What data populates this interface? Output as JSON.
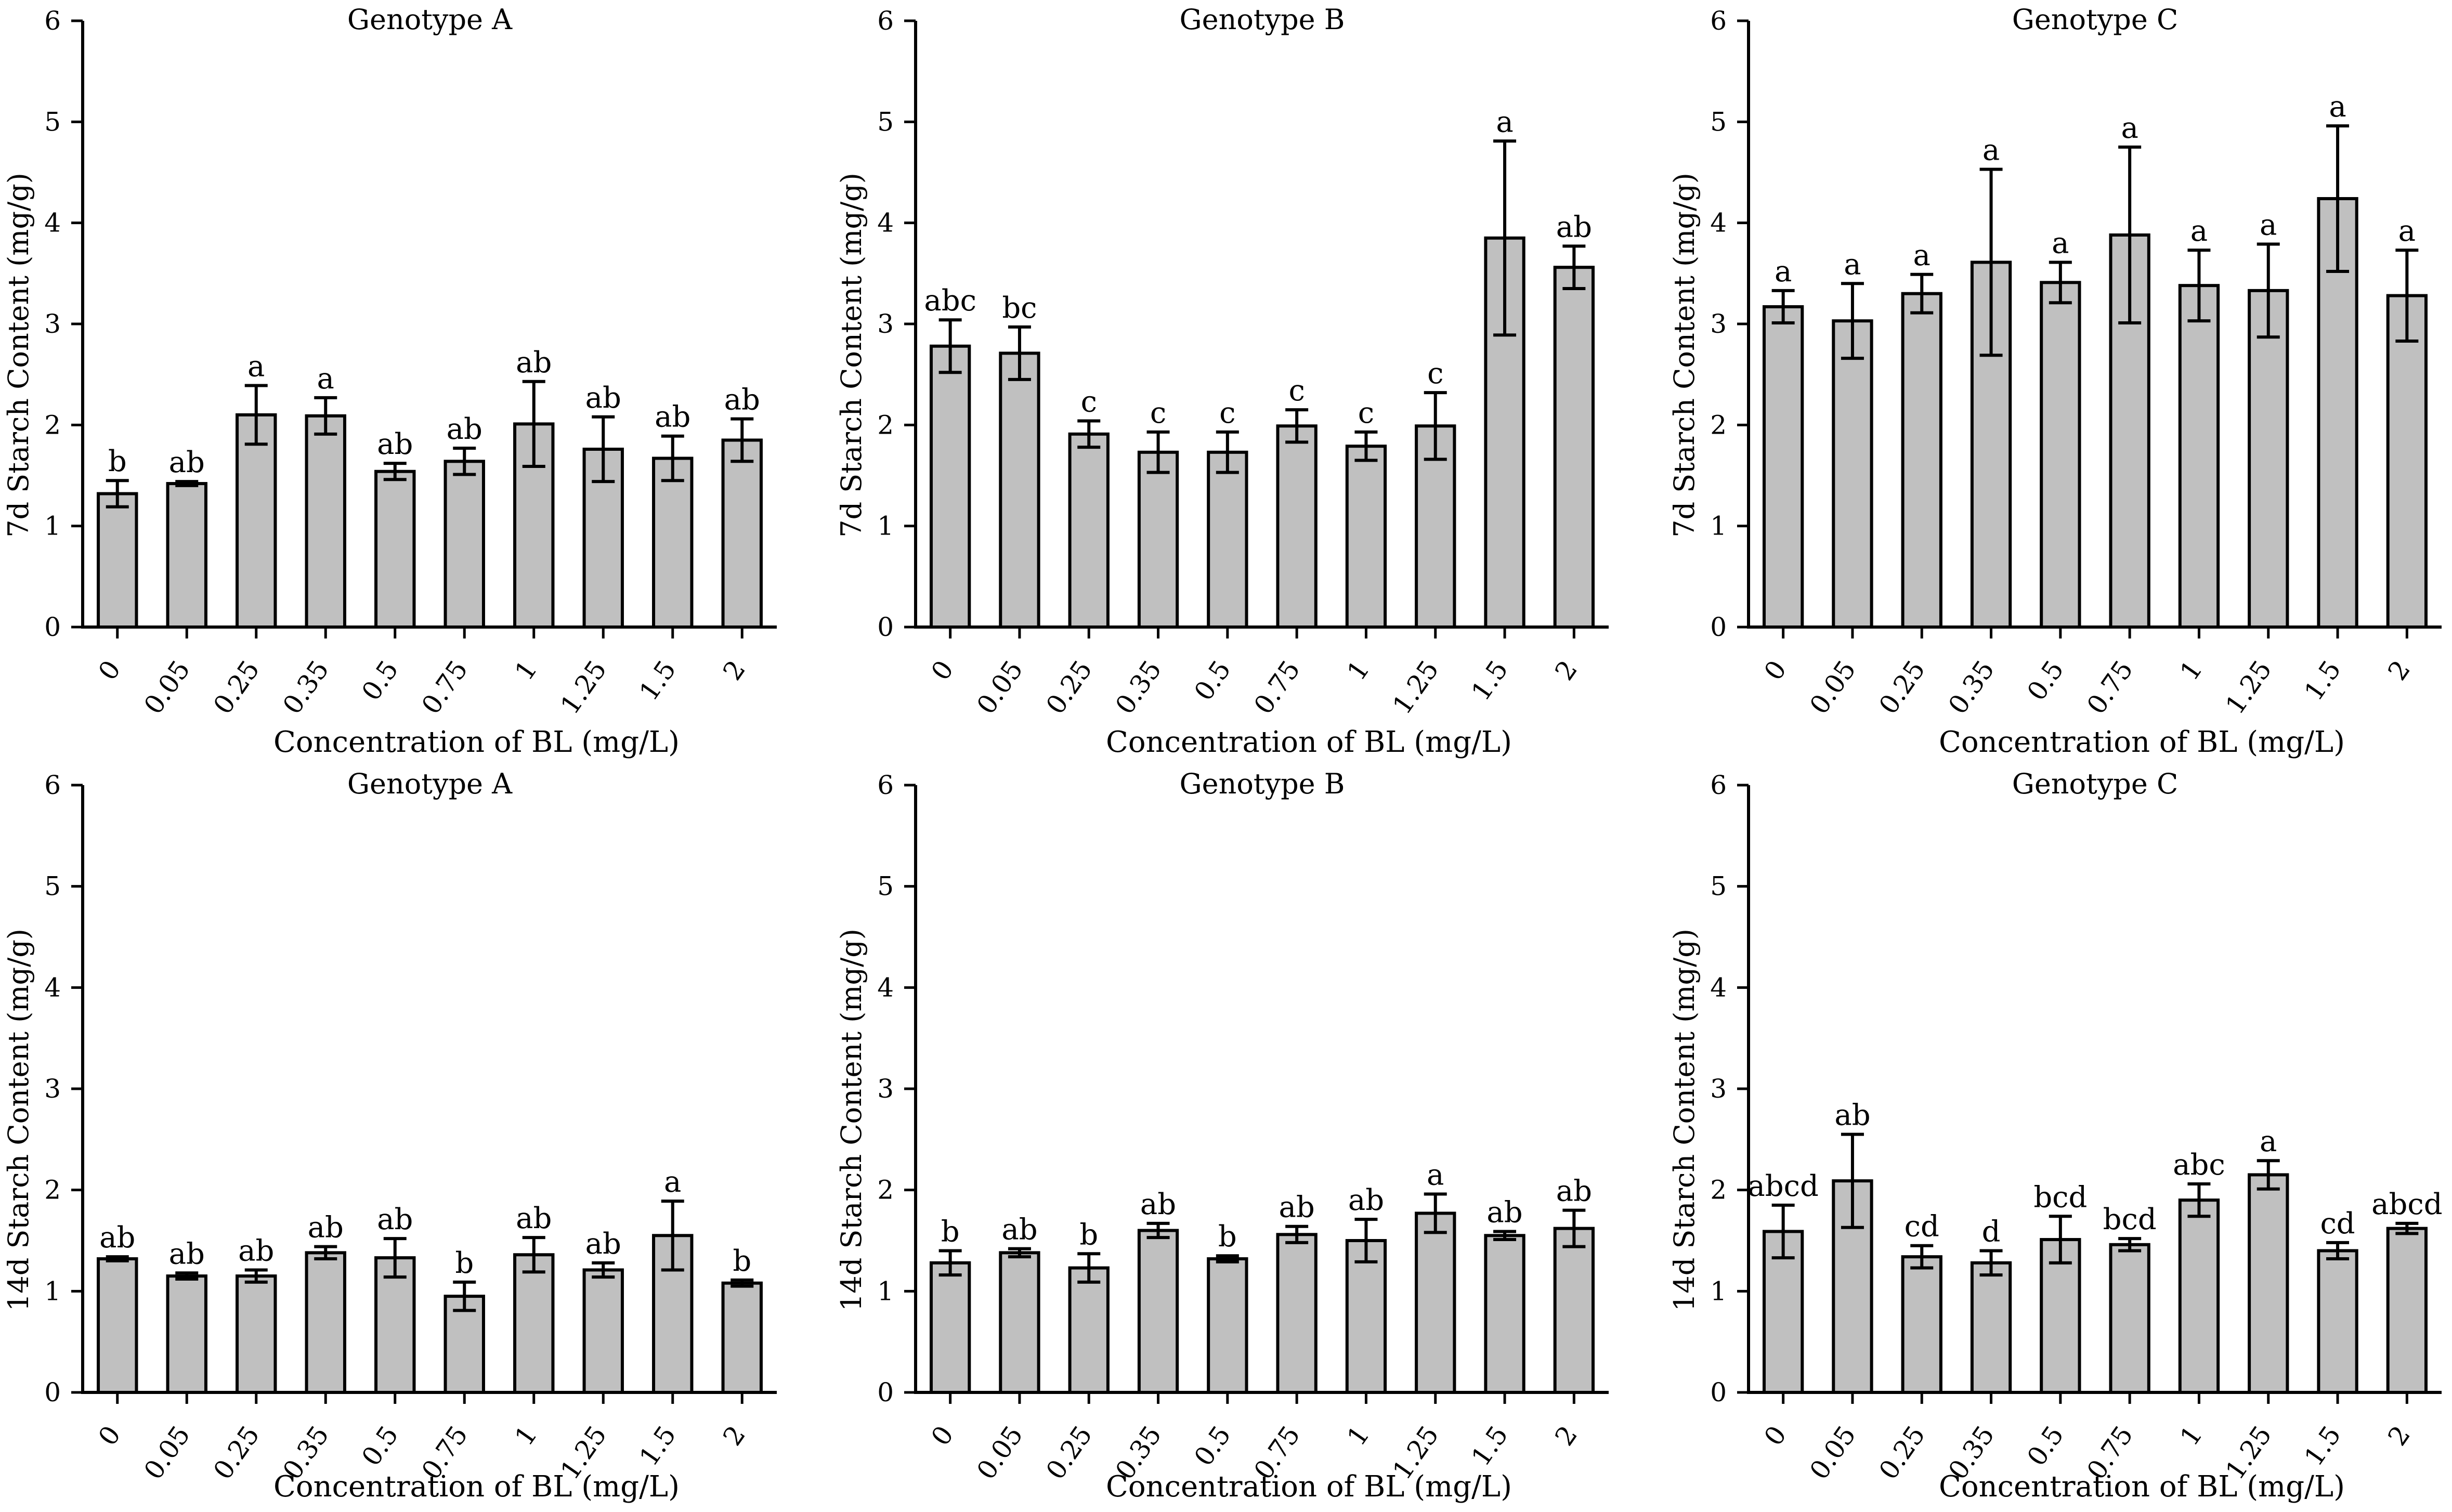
{
  "figure": {
    "title": ""
  },
  "chart_data": [
    {
      "type": "bar",
      "title": "Genotype A",
      "ylabel": "7d Starch Content (mg/g)",
      "xlabel": "Concentration of BL (mg/L)",
      "ylim": [
        0,
        6
      ],
      "yticks": [
        "0",
        "1",
        "2",
        "3",
        "4",
        "5",
        "6"
      ],
      "categories": [
        "0",
        "0.05",
        "0.25",
        "0.35",
        "0.5",
        "0.75",
        "1",
        "1.25",
        "1.5",
        "2"
      ],
      "values": [
        1.32,
        1.42,
        2.1,
        2.09,
        1.54,
        1.64,
        2.01,
        1.76,
        1.67,
        1.85
      ],
      "errors": [
        0.13,
        0.02,
        0.29,
        0.18,
        0.08,
        0.13,
        0.42,
        0.32,
        0.22,
        0.21
      ],
      "labels": [
        "b",
        "ab",
        "a",
        "a",
        "ab",
        "ab",
        "ab",
        "ab",
        "ab",
        "ab"
      ]
    },
    {
      "type": "bar",
      "title": "Genotype B",
      "ylabel": "7d Starch Content (mg/g)",
      "xlabel": "Concentration of BL (mg/L)",
      "ylim": [
        0,
        6
      ],
      "yticks": [
        "0",
        "1",
        "2",
        "3",
        "4",
        "5",
        "6"
      ],
      "categories": [
        "0",
        "0.05",
        "0.25",
        "0.35",
        "0.5",
        "0.75",
        "1",
        "1.25",
        "1.5",
        "2"
      ],
      "values": [
        2.78,
        2.71,
        1.91,
        1.73,
        1.73,
        1.99,
        1.79,
        1.99,
        3.85,
        3.56
      ],
      "errors": [
        0.26,
        0.26,
        0.13,
        0.2,
        0.2,
        0.16,
        0.14,
        0.33,
        0.96,
        0.21
      ],
      "labels": [
        "abc",
        "bc",
        "c",
        "c",
        "c",
        "c",
        "c",
        "c",
        "a",
        "ab"
      ]
    },
    {
      "type": "bar",
      "title": "Genotype C",
      "ylabel": "7d Starch Content (mg/g)",
      "xlabel": "Concentration of BL (mg/L)",
      "ylim": [
        0,
        6
      ],
      "yticks": [
        "0",
        "1",
        "2",
        "3",
        "4",
        "5",
        "6"
      ],
      "categories": [
        "0",
        "0.05",
        "0.25",
        "0.35",
        "0.5",
        "0.75",
        "1",
        "1.25",
        "1.5",
        "2"
      ],
      "values": [
        3.17,
        3.03,
        3.3,
        3.61,
        3.41,
        3.88,
        3.38,
        3.33,
        4.24,
        3.28
      ],
      "errors": [
        0.16,
        0.37,
        0.19,
        0.92,
        0.2,
        0.87,
        0.35,
        0.46,
        0.72,
        0.45
      ],
      "labels": [
        "a",
        "a",
        "a",
        "a",
        "a",
        "a",
        "a",
        "a",
        "a",
        "a"
      ]
    },
    {
      "type": "bar",
      "title": "Genotype A",
      "ylabel": "14d Starch Content (mg/g)",
      "xlabel": "Concentration of BL (mg/L)",
      "ylim": [
        0,
        6
      ],
      "yticks": [
        "0",
        "1",
        "2",
        "3",
        "4",
        "5",
        "6"
      ],
      "categories": [
        "0",
        "0.05",
        "0.25",
        "0.35",
        "0.5",
        "0.75",
        "1",
        "1.25",
        "1.5",
        "2"
      ],
      "values": [
        1.32,
        1.15,
        1.15,
        1.38,
        1.33,
        0.95,
        1.36,
        1.21,
        1.55,
        1.08
      ],
      "errors": [
        0.02,
        0.03,
        0.06,
        0.06,
        0.19,
        0.14,
        0.17,
        0.07,
        0.34,
        0.03
      ],
      "labels": [
        "ab",
        "ab",
        "ab",
        "ab",
        "ab",
        "b",
        "ab",
        "ab",
        "a",
        "b"
      ]
    },
    {
      "type": "bar",
      "title": "Genotype B",
      "ylabel": "14d Starch Content (mg/g)",
      "xlabel": "Concentration of BL (mg/L)",
      "ylim": [
        0,
        6
      ],
      "yticks": [
        "0",
        "1",
        "2",
        "3",
        "4",
        "5",
        "6"
      ],
      "categories": [
        "0",
        "0.05",
        "0.25",
        "0.35",
        "0.5",
        "0.75",
        "1",
        "1.25",
        "1.5",
        "2"
      ],
      "values": [
        1.28,
        1.38,
        1.23,
        1.6,
        1.32,
        1.56,
        1.5,
        1.77,
        1.55,
        1.62
      ],
      "errors": [
        0.12,
        0.04,
        0.14,
        0.07,
        0.03,
        0.08,
        0.21,
        0.19,
        0.04,
        0.18
      ],
      "labels": [
        "b",
        "ab",
        "b",
        "ab",
        "b",
        "ab",
        "ab",
        "a",
        "ab",
        "ab"
      ]
    },
    {
      "type": "bar",
      "title": "Genotype C",
      "ylabel": "14d Starch Content (mg/g)",
      "xlabel": "Concentration of BL (mg/L)",
      "ylim": [
        0,
        6
      ],
      "yticks": [
        "0",
        "1",
        "2",
        "3",
        "4",
        "5",
        "6"
      ],
      "categories": [
        "0",
        "0.05",
        "0.25",
        "0.35",
        "0.5",
        "0.75",
        "1",
        "1.25",
        "1.5",
        "2"
      ],
      "values": [
        1.59,
        2.09,
        1.34,
        1.28,
        1.51,
        1.46,
        1.9,
        2.15,
        1.4,
        1.62
      ],
      "errors": [
        0.26,
        0.46,
        0.11,
        0.12,
        0.23,
        0.06,
        0.16,
        0.14,
        0.08,
        0.05
      ],
      "labels": [
        "abcd",
        "ab",
        "cd",
        "d",
        "bcd",
        "bcd",
        "abc",
        "a",
        "cd",
        "abcd"
      ]
    }
  ]
}
